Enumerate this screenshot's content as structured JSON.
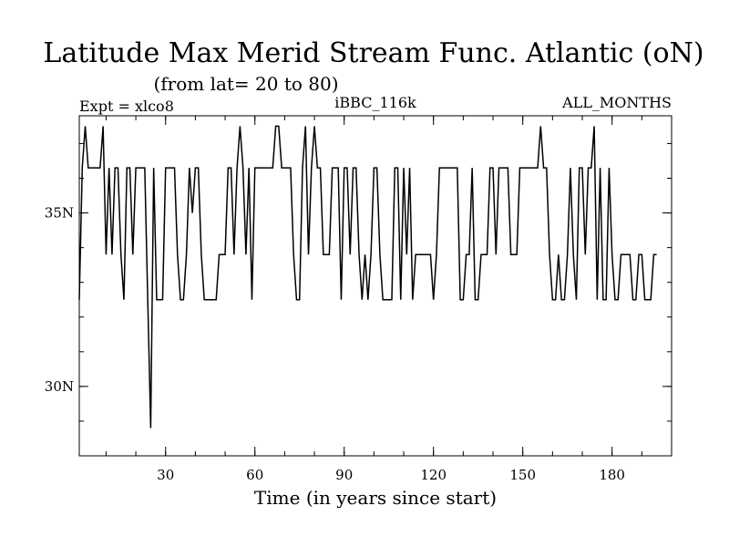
{
  "chart_data": {
    "type": "line",
    "title": "Latitude Max Merid Stream Func. Atlantic (oN)",
    "subtitle": "(from lat= 20 to 80)",
    "label_left": "Expt = xlco8",
    "label_center": "iBBC_116k",
    "label_right": "ALL_MONTHS",
    "xlabel": "Time (in years since start)",
    "ylabel": "",
    "xlim": [
      1,
      200
    ],
    "ylim": [
      28,
      37.8
    ],
    "x_ticks": [
      30,
      60,
      90,
      120,
      150,
      180
    ],
    "x_tick_labels": [
      "30",
      "60",
      "90",
      "120",
      "150",
      "180"
    ],
    "y_ticks": [
      30,
      35
    ],
    "y_tick_labels": [
      "30N",
      "35N"
    ],
    "series": [
      {
        "values": [
          32.5,
          36.3,
          37.5,
          36.3,
          36.3,
          36.3,
          36.3,
          36.3,
          37.5,
          33.8,
          36.3,
          33.8,
          36.3,
          36.3,
          33.8,
          32.5,
          36.3,
          36.3,
          33.8,
          36.3,
          36.3,
          36.3,
          36.3,
          32.5,
          28.8,
          36.3,
          32.5,
          32.5,
          32.5,
          36.3,
          36.3,
          36.3,
          36.3,
          33.8,
          32.5,
          32.5,
          33.8,
          36.3,
          35.0,
          36.3,
          36.3,
          33.8,
          32.5,
          32.5,
          32.5,
          32.5,
          32.5,
          33.8,
          33.8,
          33.8,
          36.3,
          36.3,
          33.8,
          36.3,
          37.5,
          36.3,
          33.8,
          36.3,
          32.5,
          36.3,
          36.3,
          36.3,
          36.3,
          36.3,
          36.3,
          36.3,
          37.5,
          37.5,
          36.3,
          36.3,
          36.3,
          36.3,
          33.8,
          32.5,
          32.5,
          36.3,
          37.5,
          33.8,
          36.3,
          37.5,
          36.3,
          36.3,
          33.8,
          33.8,
          33.8,
          36.3,
          36.3,
          36.3,
          32.5,
          36.3,
          36.3,
          33.8,
          36.3,
          36.3,
          33.8,
          32.5,
          33.8,
          32.5,
          33.8,
          36.3,
          36.3,
          33.8,
          32.5,
          32.5,
          32.5,
          32.5,
          36.3,
          36.3,
          32.5,
          36.3,
          33.8,
          36.3,
          32.5,
          33.8,
          33.8,
          33.8,
          33.8,
          33.8,
          33.8,
          32.5,
          33.8,
          36.3,
          36.3,
          36.3,
          36.3,
          36.3,
          36.3,
          36.3,
          32.5,
          32.5,
          33.8,
          33.8,
          36.3,
          32.5,
          32.5,
          33.8,
          33.8,
          33.8,
          36.3,
          36.3,
          33.8,
          36.3,
          36.3,
          36.3,
          36.3,
          33.8,
          33.8,
          33.8,
          36.3,
          36.3,
          36.3,
          36.3,
          36.3,
          36.3,
          36.3,
          37.5,
          36.3,
          36.3,
          33.8,
          32.5,
          32.5,
          33.8,
          32.5,
          32.5,
          33.8,
          36.3,
          33.8,
          32.5,
          36.3,
          36.3,
          33.8,
          36.3,
          36.3,
          37.5,
          32.5,
          36.3,
          32.5,
          32.5,
          36.3,
          33.8,
          32.5,
          32.5,
          33.8,
          33.8,
          33.8,
          33.8,
          32.5,
          32.5,
          33.8,
          33.8,
          32.5,
          32.5,
          32.5,
          33.8,
          33.8
        ]
      }
    ]
  }
}
